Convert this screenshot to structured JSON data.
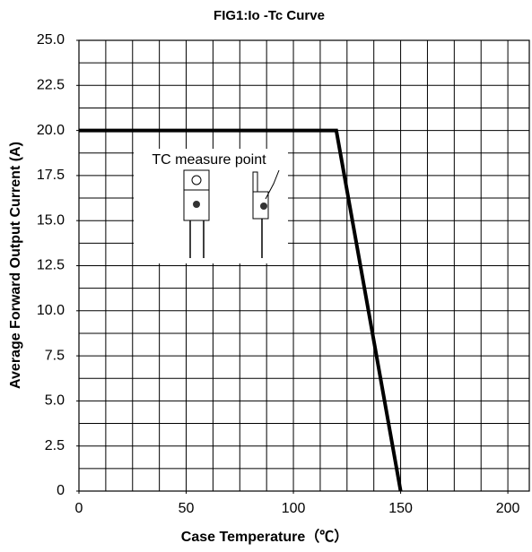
{
  "chart_data": {
    "type": "line",
    "title": "FIG1:Io -Tc Curve",
    "x_label": "Case Temperature（℃）",
    "y_label": "Average Forward Output Current (A)",
    "annotation": "TC measure point",
    "x": [
      0,
      120,
      150
    ],
    "series": [
      {
        "name": "Io",
        "color": "#000000",
        "values": [
          20,
          20,
          0
        ]
      }
    ],
    "xlim": [
      0,
      210
    ],
    "xticks": [
      0,
      50,
      100,
      150,
      200
    ],
    "ylim": [
      0,
      25
    ],
    "yticks": [
      0,
      2.5,
      {
        "value": 5,
        "label": "5.0"
      },
      7.5,
      {
        "value": 10,
        "label": "10.0"
      },
      12.5,
      {
        "value": 15,
        "label": "15.0"
      },
      17.5,
      {
        "value": 20,
        "label": "20.0"
      },
      22.5,
      {
        "value": 25,
        "label": "25.0"
      }
    ],
    "x_grid_step": 12.5,
    "y_grid_step": 1.25,
    "grid": true
  }
}
